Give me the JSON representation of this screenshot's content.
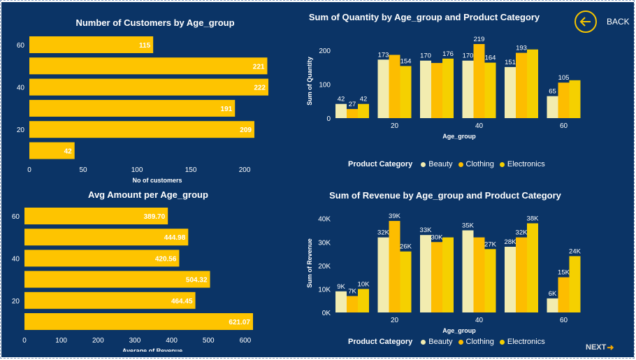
{
  "navigation": {
    "back_label": "BACK",
    "next_label": "NEXT",
    "back_icon": "arrow-left-circle-icon",
    "next_icon": "arrow-right-icon"
  },
  "colors": {
    "background": "#0b3466",
    "bar": "#fec400",
    "beauty": "#f2ecb0",
    "clothing": "#fdbd00",
    "electronics": "#f5d000"
  },
  "legend": {
    "title": "Product Category",
    "items": [
      "Beauty",
      "Clothing",
      "Electronics"
    ]
  },
  "chart_data": [
    {
      "type": "bar",
      "orientation": "horizontal",
      "title": "Number of Customers by Age_group",
      "xlabel": "No of customers",
      "ylabel": "",
      "categories": [
        60,
        50,
        40,
        30,
        20,
        10
      ],
      "y_tick_labels": [
        "60",
        "40",
        "20"
      ],
      "values": [
        115,
        221,
        222,
        191,
        209,
        42
      ],
      "value_labels": [
        "115",
        "221",
        "222",
        "191",
        "209",
        "42"
      ],
      "xlim": [
        0,
        222
      ],
      "x_ticks": [
        0,
        50,
        100,
        150,
        200
      ]
    },
    {
      "type": "bar",
      "orientation": "horizontal",
      "title": "Avg Amount per Age_group",
      "xlabel": "Average of Revenue",
      "ylabel": "",
      "categories": [
        60,
        50,
        40,
        30,
        20,
        10
      ],
      "y_tick_labels": [
        "60",
        "40",
        "20"
      ],
      "values": [
        389.7,
        444.98,
        420.56,
        504.32,
        464.45,
        621.07
      ],
      "value_labels": [
        "389.70",
        "444.98",
        "420.56",
        "504.32",
        "464.45",
        "621.07"
      ],
      "xlim": [
        0,
        621.07
      ],
      "x_ticks": [
        0,
        100,
        200,
        300,
        400,
        500,
        600
      ]
    },
    {
      "type": "bar",
      "orientation": "vertical",
      "title": "Sum of Quantity by Age_group and Product Category",
      "xlabel": "Age_group",
      "ylabel": "Sum of Quantity",
      "categories": [
        10,
        20,
        30,
        40,
        50,
        60
      ],
      "x_tick_labels": [
        "20",
        "40",
        "60"
      ],
      "ylim": [
        0,
        219
      ],
      "y_ticks": [
        0,
        100,
        200
      ],
      "series": [
        {
          "name": "Beauty",
          "values": [
            42,
            173,
            170,
            170,
            151,
            65
          ],
          "labels": [
            "42",
            "173",
            "170",
            "170",
            "151",
            "65"
          ]
        },
        {
          "name": "Clothing",
          "values": [
            27,
            187,
            163,
            219,
            193,
            105
          ],
          "labels": [
            "27",
            "",
            "",
            "219",
            "193",
            "105"
          ]
        },
        {
          "name": "Electronics",
          "values": [
            42,
            154,
            176,
            164,
            203,
            112
          ],
          "labels": [
            "42",
            "154",
            "176",
            "164",
            "",
            ""
          ]
        }
      ]
    },
    {
      "type": "bar",
      "orientation": "vertical",
      "title": "Sum of Revenue by Age_group and Product Category",
      "xlabel": "Age_group",
      "ylabel": "Sum of Revenue",
      "categories": [
        10,
        20,
        30,
        40,
        50,
        60
      ],
      "x_tick_labels": [
        "20",
        "40",
        "60"
      ],
      "ylim": [
        0,
        42000
      ],
      "y_ticks": [
        0,
        10000,
        20000,
        30000,
        40000
      ],
      "y_tick_labels": [
        "0K",
        "10K",
        "20K",
        "30K",
        "40K"
      ],
      "series": [
        {
          "name": "Beauty",
          "values": [
            9000,
            32000,
            33000,
            35000,
            28000,
            6000
          ],
          "labels": [
            "9K",
            "32K",
            "33K",
            "35K",
            "28K",
            "6K"
          ]
        },
        {
          "name": "Clothing",
          "values": [
            7000,
            39000,
            30000,
            32000,
            32000,
            15000
          ],
          "labels": [
            "7K",
            "39K",
            "30K",
            "",
            "32K",
            "15K"
          ]
        },
        {
          "name": "Electronics",
          "values": [
            10000,
            26000,
            32000,
            27000,
            38000,
            24000
          ],
          "labels": [
            "10K",
            "26K",
            "",
            "27K",
            "38K",
            "24K"
          ]
        }
      ]
    }
  ]
}
